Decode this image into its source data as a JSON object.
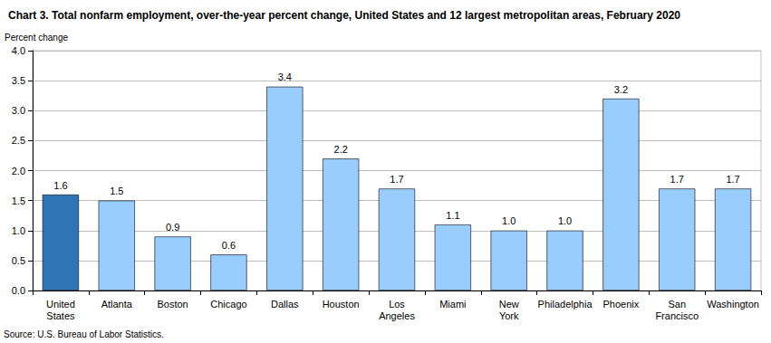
{
  "chart_data": {
    "type": "bar",
    "title": "Chart 3. Total nonfarm employment, over-the-year percent change, United States and 12 largest metropolitan areas, February 2020",
    "y_label": "Percent change",
    "source": "Source: U.S. Bureau of Labor Statistics.",
    "categories": [
      "United\nStates",
      "Atlanta",
      "Boston",
      "Chicago",
      "Dallas",
      "Houston",
      "Los\nAngeles",
      "Miami",
      "New\nYork",
      "Philadelphia",
      "Phoenix",
      "San\nFrancisco",
      "Washington"
    ],
    "values": [
      1.6,
      1.5,
      0.9,
      0.6,
      3.4,
      2.2,
      1.7,
      1.1,
      1.0,
      1.0,
      3.2,
      1.7,
      1.7
    ],
    "value_labels": [
      "1.6",
      "1.5",
      "0.9",
      "0.6",
      "3.4",
      "2.2",
      "1.7",
      "1.1",
      "1.0",
      "1.0",
      "3.2",
      "1.7",
      "1.7"
    ],
    "colors": [
      "#2e75b6",
      "#99ccff",
      "#99ccff",
      "#99ccff",
      "#99ccff",
      "#99ccff",
      "#99ccff",
      "#99ccff",
      "#99ccff",
      "#99ccff",
      "#99ccff",
      "#99ccff",
      "#99ccff"
    ],
    "ylim": [
      0,
      4
    ],
    "yticks": [
      {
        "value": 0,
        "label": "0.0"
      },
      {
        "value": 0.5,
        "label": "0.5"
      },
      {
        "value": 1,
        "label": "1.0"
      },
      {
        "value": 1.5,
        "label": "1.5"
      },
      {
        "value": 2,
        "label": "2.0"
      },
      {
        "value": 2.5,
        "label": "2.5"
      },
      {
        "value": 3,
        "label": "3.0"
      },
      {
        "value": 3.5,
        "label": "3.5"
      },
      {
        "value": 4,
        "label": "4.0"
      }
    ],
    "grid": true,
    "data_labels": true
  }
}
